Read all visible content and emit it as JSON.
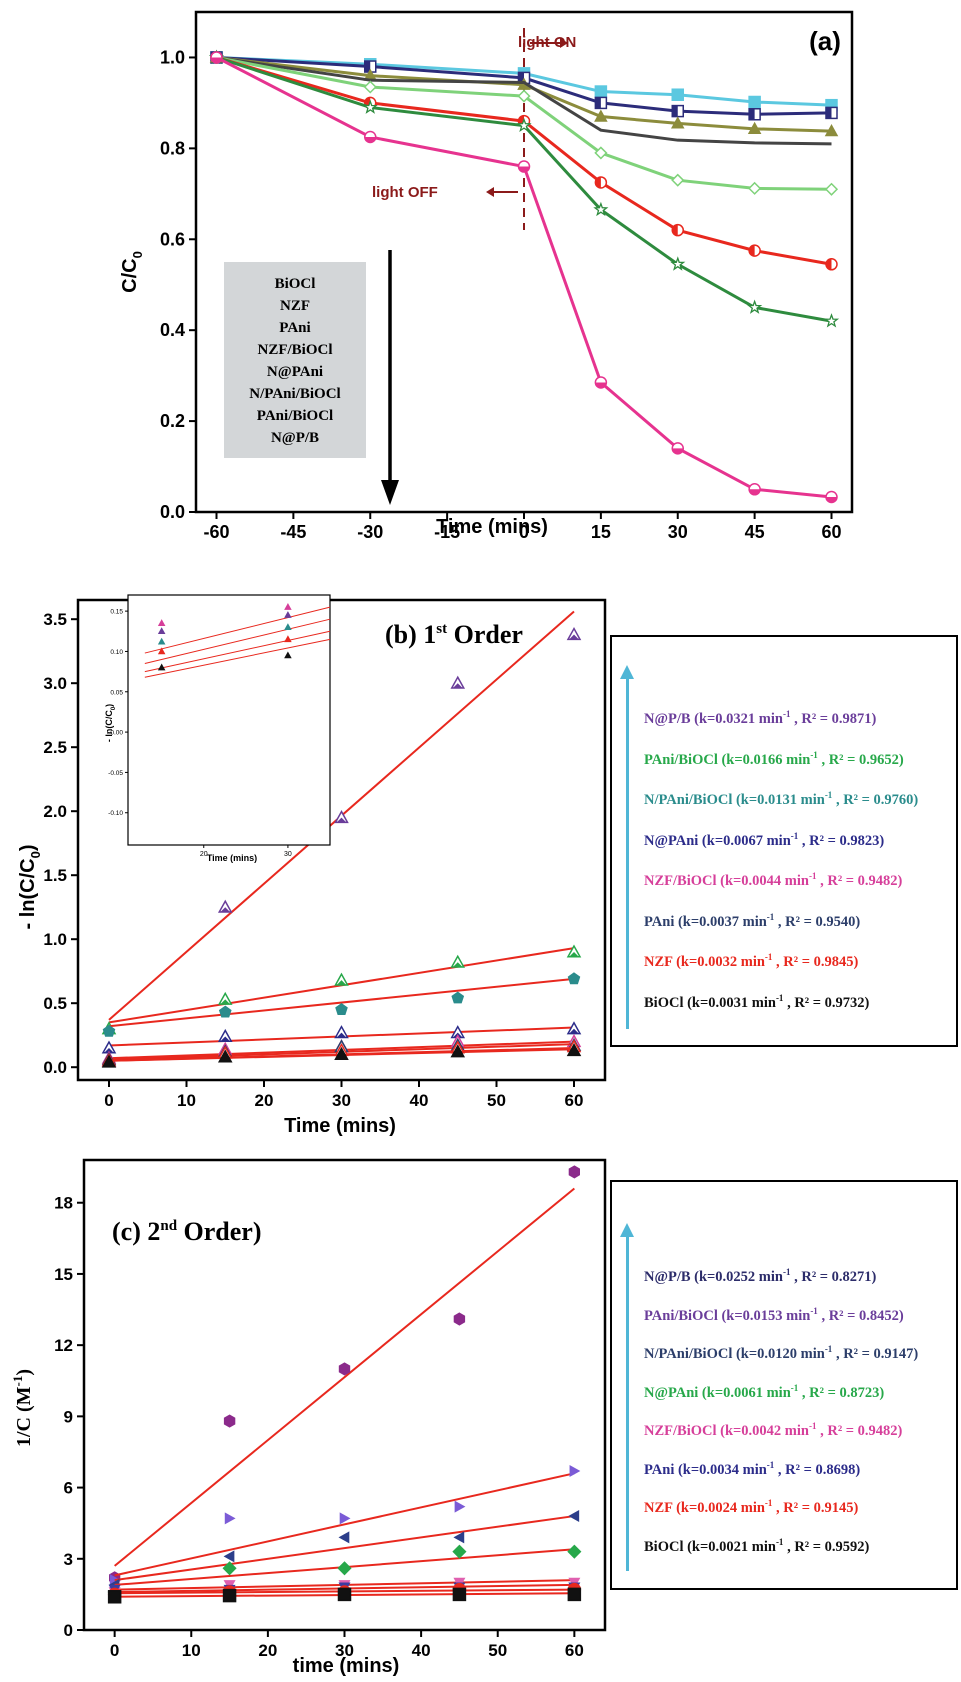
{
  "chart_data": [
    {
      "type": "line",
      "panel_label": "(a)",
      "xlabel": "Time (mins)",
      "ylabel_main": "C/C",
      "ylabel_sub": "0",
      "x": [
        -60,
        -30,
        0,
        15,
        30,
        45,
        60
      ],
      "xticks": [
        -60,
        -45,
        -30,
        -15,
        0,
        15,
        30,
        45,
        60
      ],
      "yticks": [
        "0.0",
        "0.2",
        "0.4",
        "0.6",
        "0.8",
        "1.0"
      ],
      "xlim": [
        -60,
        60
      ],
      "ylim": [
        0,
        1.0
      ],
      "annotations": {
        "light_on": "light ON",
        "light_off": "light OFF"
      },
      "legend_box": [
        "BiOCl",
        "NZF",
        "PAni",
        "NZF/BiOCl",
        "N@PAni",
        "N/PAni/BiOCl",
        "PAni/BiOCl",
        "N@P/B"
      ],
      "series": [
        {
          "color": "#5bc8e0",
          "marker": "square",
          "values": [
            1.0,
            0.985,
            0.965,
            0.925,
            0.918,
            0.902,
            0.895
          ]
        },
        {
          "color": "#2c2c7a",
          "marker": "square-half",
          "values": [
            1.0,
            0.98,
            0.955,
            0.9,
            0.882,
            0.875,
            0.878
          ]
        },
        {
          "color": "#8c8c3c",
          "marker": "triangle",
          "values": [
            1.0,
            0.96,
            0.94,
            0.87,
            0.855,
            0.843,
            0.838
          ]
        },
        {
          "color": "#444444",
          "marker": "none",
          "values": [
            1.0,
            0.95,
            0.945,
            0.84,
            0.818,
            0.812,
            0.81
          ]
        },
        {
          "color": "#7fd27a",
          "marker": "diamond",
          "values": [
            1.0,
            0.935,
            0.915,
            0.79,
            0.73,
            0.712,
            0.71
          ]
        },
        {
          "color": "#e8281e",
          "marker": "circle-half",
          "values": [
            1.0,
            0.9,
            0.86,
            0.725,
            0.62,
            0.575,
            0.545
          ]
        },
        {
          "color": "#2e8b3e",
          "marker": "star",
          "values": [
            1.0,
            0.89,
            0.85,
            0.665,
            0.545,
            0.45,
            0.42
          ]
        },
        {
          "color": "#e6338f",
          "marker": "circle-half-h",
          "values": [
            1.0,
            0.825,
            0.76,
            0.285,
            0.14,
            0.05,
            0.033
          ]
        }
      ]
    },
    {
      "type": "scatter",
      "panel_label": "(b) 1",
      "panel_label_sup": "st",
      "panel_label_tail": " Order",
      "xlabel": "Time (mins)",
      "ylabel": "- ln(C/C",
      "ylabel_sub": "0",
      "ylabel_tail": ")",
      "x": [
        0,
        15,
        30,
        45,
        60
      ],
      "xticks": [
        0,
        10,
        20,
        30,
        40,
        50,
        60
      ],
      "yticks": [
        "0.0",
        "0.5",
        "1.0",
        "1.5",
        "2.0",
        "2.5",
        "3.0",
        "3.5"
      ],
      "xlim": [
        -4,
        64
      ],
      "ylim": [
        -0.1,
        3.65
      ],
      "inset": {
        "xlabel": "Time (mins)",
        "ylabel": "- ln(C/C",
        "ylabel_sub": "0",
        "ylabel_tail": ")",
        "xticks": [
          20,
          30
        ],
        "yticks": [
          "0.15",
          "0.10",
          "0.05",
          "0.00",
          "-0.05",
          "-0.10"
        ]
      },
      "legend": [
        {
          "name": "N@P/B",
          "detail": "(k=0.0321 min",
          "sup": "-1",
          "r2": ", R² = 0.9871)",
          "color": "#6a3d9a"
        },
        {
          "name": "PAni/BiOCl",
          "detail": "(k=0.0166 min",
          "sup": "-1",
          "r2": ", R² = 0.9652)",
          "color": "#27a84a"
        },
        {
          "name": "N/PAni/BiOCl",
          "detail": "(k=0.0131 min",
          "sup": "-1",
          "r2": ", R² = 0.9760)",
          "color": "#2a8c8c"
        },
        {
          "name": "N@PAni",
          "detail": "(k=0.0067 min",
          "sup": "-1",
          "r2": ", R² = 0.9823)",
          "color": "#2c2c8a"
        },
        {
          "name": "NZF/BiOCl",
          "detail": "(k=0.0044 min",
          "sup": "-1",
          "r2": ", R² = 0.9482)",
          "color": "#d63f9a"
        },
        {
          "name": "PAni",
          "detail": "(k=0.0037 min",
          "sup": "-1",
          "r2": ", R² = 0.9540)",
          "color": "#2c3e6a"
        },
        {
          "name": "NZF",
          "detail": "(k=0.0032 min",
          "sup": "-1",
          "r2": ", R² = 0.9845)",
          "color": "#e8281e"
        },
        {
          "name": "BiOCl",
          "detail": "(k=0.0031 min",
          "sup": "-1",
          "r2": ", R² = 0.9732)",
          "color": "#111111"
        }
      ],
      "series": [
        {
          "color": "#6a3d9a",
          "marker": "triangle-open",
          "values": [
            0.05,
            1.25,
            1.95,
            3.0,
            3.38
          ],
          "fit": [
            0.37,
            3.56
          ]
        },
        {
          "color": "#27a84a",
          "marker": "triangle-open",
          "values": [
            0.3,
            0.53,
            0.68,
            0.82,
            0.9
          ],
          "fit": [
            0.35,
            0.93
          ]
        },
        {
          "color": "#2a8c8c",
          "marker": "pentagon",
          "values": [
            0.28,
            0.43,
            0.45,
            0.54,
            0.69
          ],
          "fit": [
            0.32,
            0.69
          ]
        },
        {
          "color": "#2c2c8a",
          "marker": "triangle-open",
          "values": [
            0.15,
            0.24,
            0.27,
            0.27,
            0.3
          ],
          "fit": [
            0.17,
            0.31
          ]
        },
        {
          "color": "#d63f9a",
          "marker": "triangle-open",
          "values": [
            0.07,
            0.14,
            0.16,
            0.2,
            0.2
          ],
          "fit": [
            0.07,
            0.2
          ]
        },
        {
          "color": "#2c3e6a",
          "marker": "triangle-open",
          "values": [
            0.06,
            0.12,
            0.16,
            0.17,
            0.17
          ],
          "fit": [
            0.06,
            0.18
          ]
        },
        {
          "color": "#e8281e",
          "marker": "triangle-open",
          "values": [
            0.05,
            0.11,
            0.13,
            0.15,
            0.16
          ],
          "fit": [
            0.05,
            0.15
          ]
        },
        {
          "color": "#111111",
          "marker": "triangle",
          "values": [
            0.04,
            0.08,
            0.1,
            0.12,
            0.13
          ],
          "fit": [
            0.05,
            0.14
          ]
        }
      ]
    },
    {
      "type": "scatter",
      "panel_label": "(c) 2",
      "panel_label_sup": "nd",
      "panel_label_tail": " Order)",
      "xlabel": "time (mins)",
      "ylabel": "1/C (M",
      "ylabel_sup": "-1",
      "ylabel_tail": ")",
      "x": [
        0,
        15,
        30,
        45,
        60
      ],
      "xticks": [
        0,
        10,
        20,
        30,
        40,
        50,
        60
      ],
      "yticks": [
        "0",
        "3",
        "6",
        "9",
        "12",
        "15",
        "18"
      ],
      "xlim": [
        -4,
        64
      ],
      "ylim": [
        0,
        19.8
      ],
      "legend": [
        {
          "name": "N@P/B",
          "detail": "(k=0.0252 min",
          "sup": "-1",
          "r2": ", R² = 0.8271)",
          "color": "#2c2c6a"
        },
        {
          "name": "PAni/BiOCl",
          "detail": "(k=0.0153 min",
          "sup": "-1",
          "r2": ", R² = 0.8452)",
          "color": "#6a3d9a"
        },
        {
          "name": "N/PAni/BiOCl",
          "detail": "(k=0.0120 min",
          "sup": "-1",
          "r2": ", R² = 0.9147)",
          "color": "#2c3e6a"
        },
        {
          "name": "N@PAni",
          "detail": "(k=0.0061 min",
          "sup": "-1",
          "r2": ", R² = 0.8723)",
          "color": "#27a84a"
        },
        {
          "name": "NZF/BiOCl",
          "detail": "(k=0.0042 min",
          "sup": "-1",
          "r2": ", R² = 0.9482)",
          "color": "#d63f9a"
        },
        {
          "name": "PAni",
          "detail": "(k=0.0034 min",
          "sup": "-1",
          "r2": ", R² = 0.8698)",
          "color": "#2c2c8a"
        },
        {
          "name": "NZF",
          "detail": "(k=0.0024 min",
          "sup": "-1",
          "r2": ", R² = 0.9145)",
          "color": "#e8281e"
        },
        {
          "name": "BiOCl",
          "detail": "(k=0.0021 min",
          "sup": "-1",
          "r2": ", R² = 0.9592)",
          "color": "#111111"
        }
      ],
      "series": [
        {
          "color": "#8b2a8b",
          "marker": "hexagon",
          "values": [
            2.2,
            8.8,
            11.0,
            13.1,
            19.3
          ],
          "fit": [
            2.7,
            18.6
          ]
        },
        {
          "color": "#7b5bd6",
          "marker": "triangle-right",
          "values": [
            2.1,
            4.7,
            4.7,
            5.2,
            6.7
          ],
          "fit": [
            2.3,
            6.6
          ]
        },
        {
          "color": "#2c3e8a",
          "marker": "triangle-left",
          "values": [
            1.9,
            3.1,
            3.9,
            3.9,
            4.8
          ],
          "fit": [
            2.1,
            4.8
          ]
        },
        {
          "color": "#27a84a",
          "marker": "diamond",
          "values": [
            1.6,
            2.6,
            2.6,
            3.3,
            3.3
          ],
          "fit": [
            1.9,
            3.4
          ]
        },
        {
          "color": "#e060b0",
          "marker": "triangle-down",
          "values": [
            1.6,
            1.9,
            1.9,
            2.0,
            2.0
          ],
          "fit": [
            1.7,
            2.1
          ]
        },
        {
          "color": "#3c3ca0",
          "marker": "triangle-down",
          "values": [
            1.7,
            1.7,
            1.8,
            1.8,
            1.8
          ],
          "fit": [
            1.6,
            1.9
          ]
        },
        {
          "color": "#e8281e",
          "marker": "circle",
          "values": [
            1.5,
            1.6,
            1.6,
            1.7,
            1.7
          ],
          "fit": [
            1.55,
            1.7
          ]
        },
        {
          "color": "#111111",
          "marker": "square",
          "values": [
            1.4,
            1.45,
            1.5,
            1.5,
            1.5
          ],
          "fit": [
            1.4,
            1.55
          ]
        }
      ]
    }
  ]
}
